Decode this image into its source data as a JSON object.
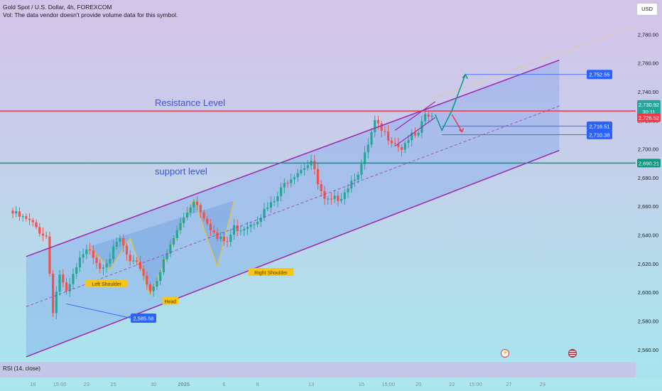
{
  "header": {
    "symbol_line": "Gold Spot / U.S. Dollar, 4h, FOREXCOM",
    "vol_line": "Vol: The data vendor doesn't provide volume data for this symbol.",
    "currency": "USD"
  },
  "indicator": {
    "rsi_label": "RSI (14, close)"
  },
  "colors": {
    "up": "#26a69a",
    "down": "#ef5350",
    "channel": "#9c27b0",
    "channel_fill": "#7aa3ec",
    "resistance": "#f23645",
    "support": "#089981",
    "label_blue": "#2962ff",
    "pattern": "#f5c518"
  },
  "chart_data": {
    "type": "candlestick",
    "symbol": "Gold Spot / U.S. Dollar",
    "timeframe": "4h",
    "ylim": [
      2553,
      2797
    ],
    "y_ticks": [
      "2,780.00",
      "2,760.00",
      "2,740.00",
      "2,720.00",
      "2,700.00",
      "2,680.00",
      "2,660.00",
      "2,640.00",
      "2,620.00",
      "2,600.00",
      "2,580.00",
      "2,560.00"
    ],
    "x_ticks": [
      "18",
      "15:00",
      "23",
      "25",
      "30",
      "2025",
      "6",
      "8",
      "13",
      "15",
      "15:00",
      "20",
      "22",
      "15:00",
      "27",
      "29"
    ],
    "x_tick_index": [
      6,
      14,
      22,
      30,
      42,
      51,
      63,
      73,
      89,
      104,
      112,
      121,
      131,
      138,
      148,
      158
    ],
    "anchors": [
      [
        0,
        2655
      ],
      [
        5,
        2649
      ],
      [
        10,
        2639
      ],
      [
        12,
        2588
      ],
      [
        14,
        2613
      ],
      [
        16,
        2598
      ],
      [
        18,
        2611
      ],
      [
        20,
        2622
      ],
      [
        23,
        2631
      ],
      [
        26,
        2618
      ],
      [
        29,
        2625
      ],
      [
        32,
        2637
      ],
      [
        35,
        2620
      ],
      [
        38,
        2618
      ],
      [
        41,
        2601
      ],
      [
        44,
        2615
      ],
      [
        49,
        2643
      ],
      [
        54,
        2665
      ],
      [
        58,
        2650
      ],
      [
        61,
        2637
      ],
      [
        64,
        2635
      ],
      [
        66,
        2645
      ],
      [
        68,
        2645
      ],
      [
        72,
        2650
      ],
      [
        78,
        2663
      ],
      [
        82,
        2679
      ],
      [
        86,
        2687
      ],
      [
        89,
        2692
      ],
      [
        91,
        2675
      ],
      [
        93,
        2663
      ],
      [
        95,
        2663
      ],
      [
        98,
        2668
      ],
      [
        101,
        2678
      ],
      [
        104,
        2688
      ],
      [
        106,
        2702
      ],
      [
        108,
        2718
      ],
      [
        110,
        2712
      ],
      [
        113,
        2707
      ],
      [
        116,
        2701
      ],
      [
        118,
        2708
      ],
      [
        121,
        2709
      ],
      [
        123,
        2724
      ],
      [
        125,
        2721
      ]
    ],
    "price_levels": {
      "resistance": 2726.52,
      "support": 2690.21,
      "current": 2730.92,
      "countdown": "30:11"
    },
    "annotations": {
      "resistance_text": "Resistance Level",
      "support_text": "support level",
      "left_shoulder": "Left Shoulder",
      "head": "Head",
      "right_shoulder": "Right Shoulder",
      "target_high": "2,752.55",
      "target_mid": "2,716.51",
      "target_low": "2,710.38",
      "swing_low": "2,585.58"
    }
  }
}
